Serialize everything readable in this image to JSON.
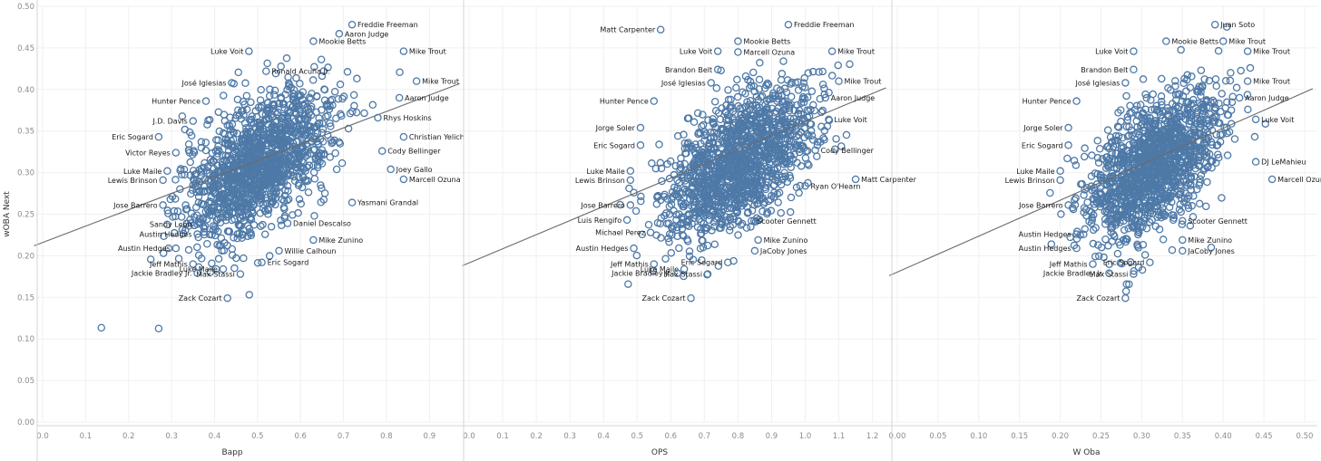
{
  "chart_data": {
    "type": "scatter",
    "ylabel": "wOBA Next",
    "ylim": [
      0,
      0.5
    ],
    "yticks": [
      "0.00",
      "0.05",
      "0.10",
      "0.15",
      "0.20",
      "0.25",
      "0.30",
      "0.35",
      "0.40",
      "0.45",
      "0.50"
    ],
    "colors": {
      "marker": "#4e79a7",
      "trend": "#6b6b6b",
      "grid": "#f0f0f0"
    },
    "grid": true,
    "panels": [
      {
        "xlabel": "Bapp",
        "xlim": [
          0,
          0.95
        ],
        "xticks": [
          "0.0",
          "0.1",
          "0.2",
          "0.3",
          "0.4",
          "0.5",
          "0.6",
          "0.7",
          "0.8",
          "0.9"
        ],
        "trend": [
          [
            -0.02,
            0.212
          ],
          [
            0.97,
            0.407
          ]
        ],
        "cloud": {
          "center": [
            0.5,
            0.31
          ],
          "spread": [
            0.085,
            0.045
          ],
          "count": 1400
        },
        "labeled_points": [
          {
            "name": "Aaron Judge",
            "x": 0.69,
            "y": 0.467
          },
          {
            "name": "Freddie Freeman",
            "x": 0.72,
            "y": 0.478
          },
          {
            "name": "Mookie Betts",
            "x": 0.63,
            "y": 0.458
          },
          {
            "name": "Luke Voit",
            "x": 0.48,
            "y": 0.446
          },
          {
            "name": "Mike Trout",
            "x": 0.84,
            "y": 0.446
          },
          {
            "name": "Ronald Acuña Jr.",
            "x": 0.52,
            "y": 0.422
          },
          {
            "name": "José Iglesias",
            "x": 0.44,
            "y": 0.408
          },
          {
            "name": "Mike Trout",
            "x": 0.87,
            "y": 0.41
          },
          {
            "name": "Aaron Judge",
            "x": 0.83,
            "y": 0.39
          },
          {
            "name": "Hunter Pence",
            "x": 0.38,
            "y": 0.386
          },
          {
            "name": "Rhys Hoskins",
            "x": 0.78,
            "y": 0.366
          },
          {
            "name": "J.D. Davis",
            "x": 0.35,
            "y": 0.362
          },
          {
            "name": "Christian Yelich",
            "x": 0.84,
            "y": 0.343
          },
          {
            "name": "Eric Sogard",
            "x": 0.27,
            "y": 0.343
          },
          {
            "name": "Cody Bellinger",
            "x": 0.79,
            "y": 0.326
          },
          {
            "name": "Victor Reyes",
            "x": 0.31,
            "y": 0.324
          },
          {
            "name": "Joey Gallo",
            "x": 0.81,
            "y": 0.304
          },
          {
            "name": "Luke Maile",
            "x": 0.29,
            "y": 0.302
          },
          {
            "name": "Lewis Brinson",
            "x": 0.28,
            "y": 0.291
          },
          {
            "name": "Marcell Ozuna",
            "x": 0.84,
            "y": 0.292
          },
          {
            "name": "Jose Barrero",
            "x": 0.28,
            "y": 0.261
          },
          {
            "name": "Yasmani Grandal",
            "x": 0.72,
            "y": 0.264
          },
          {
            "name": "Daniel Descalso",
            "x": 0.57,
            "y": 0.239
          },
          {
            "name": "Sandy León",
            "x": 0.36,
            "y": 0.238
          },
          {
            "name": "Austin Hedges",
            "x": 0.36,
            "y": 0.226
          },
          {
            "name": "Mike Zunino",
            "x": 0.63,
            "y": 0.219
          },
          {
            "name": "Willie Calhoun",
            "x": 0.55,
            "y": 0.206
          },
          {
            "name": "Austin Hedges",
            "x": 0.31,
            "y": 0.209
          },
          {
            "name": "Jeff Mathis",
            "x": 0.35,
            "y": 0.19
          },
          {
            "name": "Eric Sogard",
            "x": 0.51,
            "y": 0.192
          },
          {
            "name": "Luke Maile",
            "x": 0.42,
            "y": 0.184
          },
          {
            "name": "Jackie Bradley Jr.",
            "x": 0.36,
            "y": 0.179
          },
          {
            "name": "Max Stassi",
            "x": 0.46,
            "y": 0.178
          },
          {
            "name": "Zack Cozart",
            "x": 0.43,
            "y": 0.149
          }
        ]
      },
      {
        "xlabel": "OPS",
        "xlim": [
          0,
          1.22
        ],
        "xticks": [
          "0.0",
          "0.1",
          "0.2",
          "0.3",
          "0.4",
          "0.5",
          "0.6",
          "0.7",
          "0.8",
          "0.9",
          "1.0",
          "1.1",
          "1.2"
        ],
        "trend": [
          [
            -0.02,
            0.188
          ],
          [
            1.24,
            0.402
          ]
        ],
        "cloud": {
          "center": [
            0.8,
            0.31
          ],
          "spread": [
            0.11,
            0.045
          ],
          "count": 1400
        },
        "labeled_points": [
          {
            "name": "Matt Carpenter",
            "x": 0.57,
            "y": 0.472
          },
          {
            "name": "Freddie Freeman",
            "x": 0.95,
            "y": 0.478
          },
          {
            "name": "Mookie Betts",
            "x": 0.8,
            "y": 0.458
          },
          {
            "name": "Luke Voit",
            "x": 0.74,
            "y": 0.446
          },
          {
            "name": "Marcell Ozuna",
            "x": 0.8,
            "y": 0.445
          },
          {
            "name": "Mike Trout",
            "x": 1.08,
            "y": 0.446
          },
          {
            "name": "Brandon Belt",
            "x": 0.74,
            "y": 0.424
          },
          {
            "name": "José Iglesias",
            "x": 0.72,
            "y": 0.408
          },
          {
            "name": "Mike Trout",
            "x": 1.1,
            "y": 0.41
          },
          {
            "name": "Aaron Judge",
            "x": 1.06,
            "y": 0.39
          },
          {
            "name": "Hunter Pence",
            "x": 0.55,
            "y": 0.386
          },
          {
            "name": "Jorge Soler",
            "x": 0.51,
            "y": 0.354
          },
          {
            "name": "Luke Voit",
            "x": 1.07,
            "y": 0.364
          },
          {
            "name": "Eric Sogard",
            "x": 0.51,
            "y": 0.333
          },
          {
            "name": "Cody Bellinger",
            "x": 1.03,
            "y": 0.327
          },
          {
            "name": "Luke Maile",
            "x": 0.48,
            "y": 0.302
          },
          {
            "name": "Matt Carpenter",
            "x": 1.15,
            "y": 0.292
          },
          {
            "name": "Lewis Brinson",
            "x": 0.48,
            "y": 0.291
          },
          {
            "name": "Ryan O'Hearn",
            "x": 1.0,
            "y": 0.284
          },
          {
            "name": "Jose Barrero",
            "x": 0.48,
            "y": 0.261
          },
          {
            "name": "Luis Rengifo",
            "x": 0.47,
            "y": 0.243
          },
          {
            "name": "Scooter Gennett",
            "x": 0.84,
            "y": 0.242
          },
          {
            "name": "Michael Perez",
            "x": 0.54,
            "y": 0.228
          },
          {
            "name": "Mike Zunino",
            "x": 0.86,
            "y": 0.219
          },
          {
            "name": "Austin Hedges",
            "x": 0.49,
            "y": 0.209
          },
          {
            "name": "JaCoby Jones",
            "x": 0.85,
            "y": 0.206
          },
          {
            "name": "Jeff Mathis",
            "x": 0.55,
            "y": 0.19
          },
          {
            "name": "Eric Sogard",
            "x": 0.77,
            "y": 0.192
          },
          {
            "name": "Luke Maile",
            "x": 0.64,
            "y": 0.184
          },
          {
            "name": "Jackie Bradley Jr.",
            "x": 0.62,
            "y": 0.179
          },
          {
            "name": "Max Stassi",
            "x": 0.71,
            "y": 0.178
          },
          {
            "name": "Zack Cozart",
            "x": 0.66,
            "y": 0.149
          }
        ]
      },
      {
        "xlabel": "W Oba",
        "xlim": [
          0,
          0.5
        ],
        "xticks": [
          "0.00",
          "0.05",
          "0.10",
          "0.15",
          "0.20",
          "0.25",
          "0.30",
          "0.35",
          "0.40",
          "0.45",
          "0.50"
        ],
        "trend": [
          [
            -0.01,
            0.176
          ],
          [
            0.51,
            0.401
          ]
        ],
        "cloud": {
          "center": [
            0.315,
            0.31
          ],
          "spread": [
            0.04,
            0.045
          ],
          "count": 1400
        },
        "labeled_points": [
          {
            "name": "Juan Soto",
            "x": 0.39,
            "y": 0.478
          },
          {
            "name": "Mookie Betts",
            "x": 0.33,
            "y": 0.458
          },
          {
            "name": "Mike Trout",
            "x": 0.4,
            "y": 0.458
          },
          {
            "name": "Luke Voit",
            "x": 0.29,
            "y": 0.446
          },
          {
            "name": "Mike Trout",
            "x": 0.43,
            "y": 0.446
          },
          {
            "name": "Brandon Belt",
            "x": 0.29,
            "y": 0.424
          },
          {
            "name": "José Iglesias",
            "x": 0.28,
            "y": 0.408
          },
          {
            "name": "Mike Trout",
            "x": 0.43,
            "y": 0.41
          },
          {
            "name": "Aaron Judge",
            "x": 0.42,
            "y": 0.39
          },
          {
            "name": "Hunter Pence",
            "x": 0.22,
            "y": 0.386
          },
          {
            "name": "Luke Voit",
            "x": 0.44,
            "y": 0.364
          },
          {
            "name": "Jorge Soler",
            "x": 0.21,
            "y": 0.354
          },
          {
            "name": "Eric Sogard",
            "x": 0.21,
            "y": 0.333
          },
          {
            "name": "DJ LeMahieu",
            "x": 0.44,
            "y": 0.313
          },
          {
            "name": "Luke Maile",
            "x": 0.2,
            "y": 0.302
          },
          {
            "name": "Lewis Brinson",
            "x": 0.2,
            "y": 0.291
          },
          {
            "name": "Marcell Ozuna",
            "x": 0.46,
            "y": 0.292
          },
          {
            "name": "Jose Barrero",
            "x": 0.21,
            "y": 0.261
          },
          {
            "name": "Scooter Gennett",
            "x": 0.35,
            "y": 0.242
          },
          {
            "name": "Austin Hedges",
            "x": 0.22,
            "y": 0.226
          },
          {
            "name": "Mike Zunino",
            "x": 0.35,
            "y": 0.219
          },
          {
            "name": "Austin Hedges",
            "x": 0.22,
            "y": 0.209
          },
          {
            "name": "JaCoby Jones",
            "x": 0.35,
            "y": 0.206
          },
          {
            "name": "Jeff Mathis",
            "x": 0.24,
            "y": 0.19
          },
          {
            "name": "Eric Sogard",
            "x": 0.31,
            "y": 0.192
          },
          {
            "name": "Jackie Bradley Jr.",
            "x": 0.26,
            "y": 0.179
          },
          {
            "name": "Max Stassi",
            "x": 0.29,
            "y": 0.178
          },
          {
            "name": "Zack Cozart",
            "x": 0.28,
            "y": 0.149
          }
        ]
      }
    ]
  }
}
